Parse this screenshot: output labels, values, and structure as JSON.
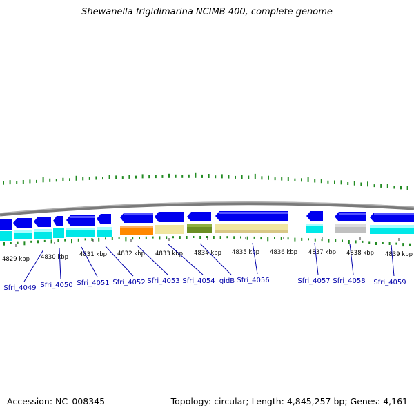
{
  "title": "Shewanella frigidimarina NCIMB 400, complete genome",
  "footer": {
    "accession": "Accession: NC_008345",
    "topology": "Topology: circular",
    "length": "Length: 4,845,257 bp",
    "genes": "Genes: 4,161",
    "separator": "; "
  },
  "colors": {
    "cds_strand": "#0000ee",
    "cds_cyan": "#00e8e8",
    "orange": "#ff8800",
    "khaki": "#f0e6a0",
    "olive": "#6b8e23",
    "gray": "#c0c0c0",
    "backbone": "#808080",
    "gc_skew": "#228b22",
    "label": "#0000aa"
  },
  "ticks": [
    "4829 kbp",
    "4830 kbp",
    "4831 kbp",
    "4832 kbp",
    "4833 kbp",
    "4834 kbp",
    "4835 kbp",
    "4836 kbp",
    "4837 kbp",
    "4838 kbp",
    "4839 kbp"
  ],
  "gene_labels": [
    "Sfri_4049",
    "Sfri_4050",
    "Sfri_4051",
    "Sfri_4052",
    "Sfri_4053",
    "Sfri_4054",
    "gidB",
    "Sfri_4056",
    "Sfri_4057",
    "Sfri_4058",
    "Sfri_4059"
  ]
}
